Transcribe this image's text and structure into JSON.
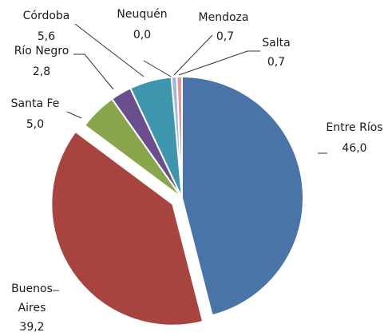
{
  "chart_data": {
    "type": "pie",
    "title": "",
    "legend": "none",
    "slices": [
      {
        "label": "Entre Ríos",
        "value": 46.0,
        "value_text": "46,0",
        "color": "#4a74a8",
        "exploded": false
      },
      {
        "label": "Buenos Aires",
        "value": 39.2,
        "value_text": "39,2",
        "color": "#a8443f",
        "exploded": true
      },
      {
        "label": "Santa Fe",
        "value": 5.0,
        "value_text": "5,0",
        "color": "#8aa64c",
        "exploded": false
      },
      {
        "label": "Río Negro",
        "value": 2.8,
        "value_text": "2,8",
        "color": "#6b4f8c",
        "exploded": false
      },
      {
        "label": "Córdoba",
        "value": 5.6,
        "value_text": "5,6",
        "color": "#3e95ae",
        "exploded": false
      },
      {
        "label": "Neuquén",
        "value": 0.0,
        "value_text": "0,0",
        "color": "#e08b2e",
        "exploded": false
      },
      {
        "label": "Mendoza",
        "value": 0.7,
        "value_text": "0,7",
        "color": "#9db8dc",
        "exploded": false
      },
      {
        "label": "Salta",
        "value": 0.7,
        "value_text": "0,7",
        "color": "#df9a97",
        "exploded": false
      }
    ]
  }
}
